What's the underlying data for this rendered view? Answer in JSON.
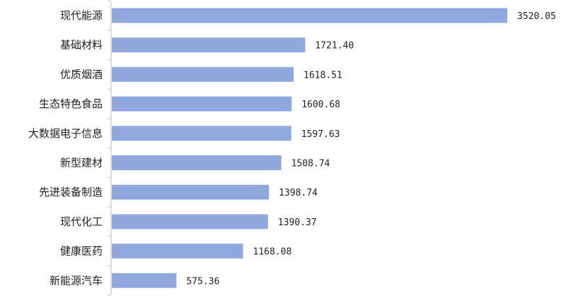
{
  "chart_data": {
    "type": "bar",
    "orientation": "horizontal",
    "categories": [
      "现代能源",
      "基础材料",
      "优质烟酒",
      "生态特色食品",
      "大数据电子信息",
      "新型建材",
      "先进装备制造",
      "现代化工",
      "健康医药",
      "新能源汽车"
    ],
    "values": [
      3520.05,
      1721.4,
      1618.51,
      1600.68,
      1597.63,
      1508.74,
      1398.74,
      1390.37,
      1168.08,
      575.36
    ],
    "value_labels": [
      "3520.05",
      "1721.40",
      "1618.51",
      "1600.68",
      "1597.63",
      "1508.74",
      "1398.74",
      "1390.37",
      "1168.08",
      "575.36"
    ],
    "title": "",
    "xlabel": "",
    "ylabel": "",
    "xlim": [
      0,
      3520.05
    ],
    "grid": false,
    "legend": "none",
    "colors": {
      "bar": "#8fa8de",
      "axis": "#bfbfbf",
      "text": "#222222"
    }
  }
}
